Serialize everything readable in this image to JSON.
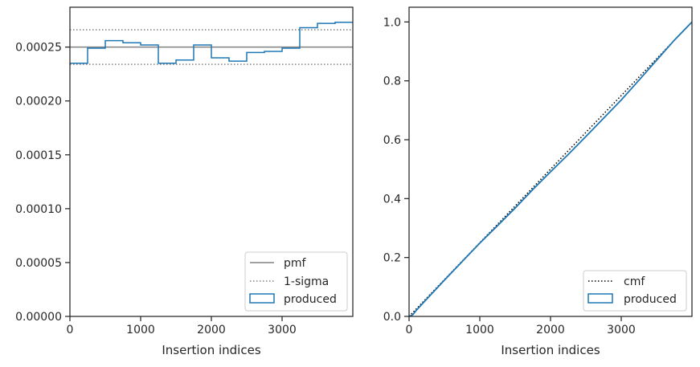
{
  "chart_data": [
    {
      "type": "step",
      "xlabel": "Insertion indices",
      "xlim": [
        0,
        4000
      ],
      "ylim": [
        0,
        0.000287
      ],
      "xticks": [
        0,
        1000,
        2000,
        3000
      ],
      "xtick_labels": [
        "0",
        "1000",
        "2000",
        "3000"
      ],
      "yticks": [
        0,
        5e-05,
        0.0001,
        0.00015,
        0.0002,
        0.00025
      ],
      "ytick_labels": [
        "0.00000",
        "0.00005",
        "0.00010",
        "0.00015",
        "0.00020",
        "0.00025"
      ],
      "grid": false,
      "legend_position": "lower-right",
      "legend": [
        "pmf",
        "1-sigma",
        "produced"
      ],
      "pmf": 0.00025,
      "sigma_upper": 0.000266,
      "sigma_lower": 0.000234,
      "produced_edges": [
        0,
        250,
        500,
        750,
        1000,
        1250,
        1500,
        1750,
        2000,
        2250,
        2500,
        2750,
        3000,
        3250,
        3500,
        3750,
        4000
      ],
      "produced_values": [
        0.000235,
        0.000249,
        0.000256,
        0.000254,
        0.000252,
        0.000235,
        0.000238,
        0.000252,
        0.00024,
        0.000237,
        0.000245,
        0.000246,
        0.000249,
        0.000268,
        0.000272,
        0.000273
      ],
      "colors": {
        "pmf": "#808080",
        "sigma": "#808080",
        "produced": "#1f77b4"
      }
    },
    {
      "type": "line",
      "xlabel": "Insertion indices",
      "xlim": [
        0,
        4000
      ],
      "ylim": [
        0,
        1.05
      ],
      "xticks": [
        0,
        1000,
        2000,
        3000
      ],
      "xtick_labels": [
        "0",
        "1000",
        "2000",
        "3000"
      ],
      "yticks": [
        0,
        0.2,
        0.4,
        0.6,
        0.8,
        1.0
      ],
      "ytick_labels": [
        "0.0",
        "0.2",
        "0.4",
        "0.6",
        "0.8",
        "1.0"
      ],
      "grid": false,
      "legend_position": "lower-right",
      "legend": [
        "cmf",
        "produced"
      ],
      "cmf": {
        "x": [
          0,
          4000
        ],
        "y": [
          0,
          1.0
        ]
      },
      "produced": {
        "x": [
          0,
          50,
          100,
          250,
          500,
          750,
          1000,
          1250,
          1500,
          1750,
          2000,
          2250,
          2500,
          2750,
          3000,
          3250,
          3500,
          3750,
          4000
        ],
        "y": [
          0,
          0.005,
          0.02,
          0.059,
          0.123,
          0.186,
          0.249,
          0.308,
          0.368,
          0.431,
          0.491,
          0.55,
          0.611,
          0.673,
          0.735,
          0.802,
          0.87,
          0.938,
          1.0
        ]
      },
      "colors": {
        "cmf": "#000000",
        "produced": "#1f77b4"
      }
    }
  ]
}
